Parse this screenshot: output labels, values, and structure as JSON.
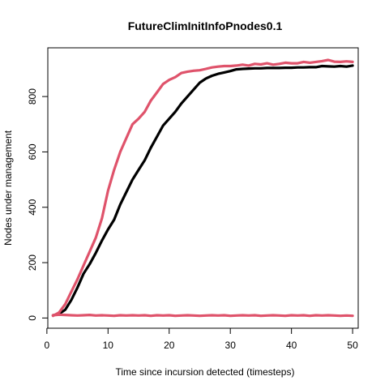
{
  "chart_data": {
    "type": "line",
    "title": "FutureClimInitInfoPnodes0.1",
    "xlabel": "Time since incursion detected (timesteps)",
    "ylabel": "Nodes under management",
    "xlim": [
      1,
      50
    ],
    "ylim": [
      0,
      935
    ],
    "x_ticks": [
      0,
      10,
      20,
      30,
      40,
      50
    ],
    "y_ticks": [
      0,
      200,
      400,
      600,
      800
    ],
    "x_tick_labels": [
      "0",
      "10",
      "20",
      "30",
      "40",
      "50"
    ],
    "y_tick_labels": [
      "0",
      "200",
      "400",
      "600",
      "800"
    ],
    "grid": false,
    "legend": "none",
    "series": [
      {
        "color": "#000000",
        "x": [
          1,
          2,
          3,
          4,
          5,
          6,
          7,
          8,
          9,
          10,
          11,
          12,
          13,
          14,
          15,
          16,
          17,
          18,
          19,
          20,
          21,
          22,
          23,
          24,
          25,
          26,
          27,
          28,
          29,
          30,
          31,
          32,
          33,
          34,
          35,
          36,
          37,
          38,
          39,
          40,
          41,
          42,
          43,
          44,
          45,
          46,
          47,
          48,
          49,
          50
        ],
        "values": [
          10,
          15,
          30,
          65,
          110,
          160,
          195,
          235,
          280,
          320,
          355,
          410,
          455,
          500,
          535,
          570,
          615,
          655,
          695,
          720,
          745,
          775,
          800,
          825,
          850,
          865,
          875,
          882,
          887,
          892,
          898,
          900,
          901,
          902,
          902,
          903,
          903,
          903,
          904,
          904,
          905,
          905,
          906,
          906,
          910,
          909,
          908,
          910,
          908,
          912
        ]
      },
      {
        "color": "#DF536B",
        "x": [
          1,
          2,
          3,
          4,
          5,
          6,
          7,
          8,
          9,
          10,
          11,
          12,
          13,
          14,
          15,
          16,
          17,
          18,
          19,
          20,
          21,
          22,
          23,
          24,
          25,
          26,
          27,
          28,
          29,
          30,
          31,
          32,
          33,
          34,
          35,
          36,
          37,
          38,
          39,
          40,
          41,
          42,
          43,
          44,
          45,
          46,
          47,
          48,
          49,
          50
        ],
        "values": [
          8,
          20,
          50,
          95,
          140,
          190,
          240,
          290,
          360,
          460,
          535,
          600,
          650,
          700,
          720,
          745,
          785,
          815,
          845,
          860,
          870,
          885,
          890,
          893,
          895,
          900,
          905,
          908,
          910,
          910,
          912,
          915,
          912,
          918,
          916,
          920,
          915,
          918,
          922,
          920,
          920,
          925,
          922,
          925,
          928,
          932,
          926,
          925,
          927,
          925
        ]
      },
      {
        "color": "#DF536B",
        "x": [
          1,
          2,
          3,
          4,
          5,
          6,
          7,
          8,
          9,
          10,
          11,
          12,
          13,
          14,
          15,
          16,
          17,
          18,
          19,
          20,
          21,
          22,
          23,
          24,
          25,
          26,
          27,
          28,
          29,
          30,
          31,
          32,
          33,
          34,
          35,
          36,
          37,
          38,
          39,
          40,
          41,
          42,
          43,
          44,
          45,
          46,
          47,
          48,
          49,
          50
        ],
        "values": [
          10,
          12,
          11,
          10,
          9,
          10,
          11,
          9,
          10,
          9,
          8,
          10,
          9,
          10,
          9,
          10,
          8,
          10,
          9,
          10,
          8,
          9,
          10,
          9,
          8,
          9,
          10,
          9,
          10,
          8,
          9,
          10,
          9,
          10,
          8,
          9,
          10,
          9,
          8,
          10,
          9,
          10,
          8,
          10,
          9,
          10,
          9,
          8,
          9,
          8
        ]
      }
    ]
  }
}
